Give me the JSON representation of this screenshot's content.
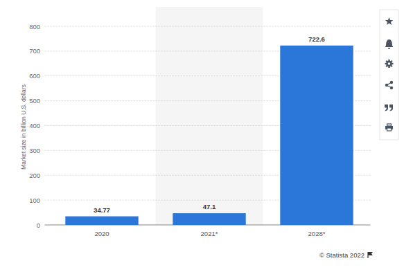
{
  "chart_data": {
    "type": "bar",
    "y_label": "Market size in billion U.S. dollars",
    "categories": [
      "2020",
      "2021*",
      "2028*"
    ],
    "values": [
      34.77,
      47.1,
      722.6
    ],
    "color": "#2a77d9",
    "ylim": [
      0,
      800
    ],
    "yticks": [
      0,
      100,
      200,
      300,
      400,
      500,
      600,
      700,
      800
    ],
    "grid": true,
    "data_labels": true,
    "source": "© Statista 2022"
  }
}
